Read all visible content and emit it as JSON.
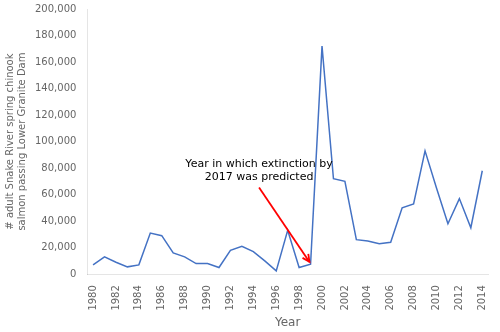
{
  "chart_data": {
    "type": "line",
    "x": [
      1980,
      1981,
      1982,
      1983,
      1984,
      1985,
      1986,
      1987,
      1988,
      1989,
      1990,
      1991,
      1992,
      1993,
      1994,
      1995,
      1996,
      1997,
      1998,
      1999,
      2000,
      2001,
      2002,
      2003,
      2004,
      2005,
      2006,
      2007,
      2008,
      2009,
      2010,
      2011,
      2012,
      2013,
      2014
    ],
    "values": [
      7000,
      13000,
      9000,
      5500,
      7000,
      31000,
      29000,
      16000,
      13000,
      8000,
      8000,
      5000,
      18000,
      21000,
      17000,
      10000,
      2500,
      33000,
      5000,
      7500,
      172000,
      72000,
      70000,
      26000,
      25000,
      23000,
      24000,
      50000,
      53000,
      93000,
      65000,
      38000,
      57000,
      35000,
      78000
    ],
    "color": "#4472C4",
    "xlabel": "Year",
    "ylabel": "# adult Snake River spring chinook\nsalmon passing Lower Granite Dam",
    "xlim": [
      1979.5,
      2014.5
    ],
    "xticks": [
      1980,
      1982,
      1984,
      1986,
      1988,
      1990,
      1992,
      1994,
      1996,
      1998,
      2000,
      2002,
      2004,
      2006,
      2008,
      2010,
      2012,
      2014
    ],
    "ylim": [
      0,
      200000
    ],
    "yticks": [
      0,
      {
        "value": 20000,
        "label": "20,000"
      },
      {
        "value": 40000,
        "label": "40,000"
      },
      {
        "value": 60000,
        "label": "60,000"
      },
      {
        "value": 80000,
        "label": "80,000"
      },
      {
        "value": 100000,
        "label": "100,000"
      },
      {
        "value": 120000,
        "label": "120,000"
      },
      {
        "value": 140000,
        "label": "140,000"
      },
      {
        "value": 160000,
        "label": "160,000"
      },
      {
        "value": 180000,
        "label": "180,000"
      },
      {
        "value": 200000,
        "label": "200,000"
      }
    ],
    "grid": false,
    "annotations": [
      {
        "text": "Year in which extinction by\n2017 was predicted",
        "x": 1999,
        "y": 8000,
        "text_x": 1994.5,
        "text_y": 78000,
        "color": "red"
      }
    ]
  }
}
